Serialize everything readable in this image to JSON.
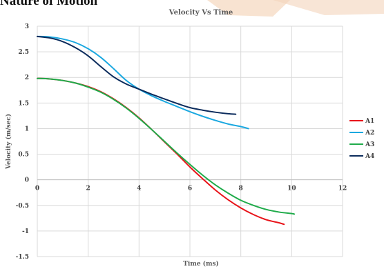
{
  "header_crop_text": "Nature of Motion",
  "chart_data": {
    "type": "line",
    "title": "Velocity Vs Time",
    "xlabel": "Time (ms)",
    "ylabel": "Velocity (m/sec)",
    "xlim": [
      0,
      12
    ],
    "ylim": [
      -1.5,
      3
    ],
    "x_ticks": [
      0,
      2,
      4,
      6,
      8,
      10,
      12
    ],
    "y_ticks": [
      3,
      2.5,
      2,
      1.5,
      1,
      0.5,
      0,
      -0.5,
      -1,
      -1.5
    ],
    "grid": true,
    "legend_position": "right",
    "series": [
      {
        "name": "A1",
        "color": "#e8141a",
        "x": [
          0,
          0.5,
          1,
          1.5,
          2,
          2.5,
          3,
          3.5,
          4,
          4.5,
          5,
          5.5,
          6,
          6.5,
          7,
          7.5,
          8,
          8.5,
          9,
          9.5,
          9.7
        ],
        "y": [
          1.98,
          1.97,
          1.94,
          1.89,
          1.82,
          1.72,
          1.58,
          1.41,
          1.21,
          0.98,
          0.74,
          0.5,
          0.25,
          0.02,
          -0.2,
          -0.39,
          -0.55,
          -0.68,
          -0.78,
          -0.84,
          -0.87
        ]
      },
      {
        "name": "A2",
        "color": "#1ba8e0",
        "x": [
          0,
          0.5,
          1,
          1.5,
          2,
          2.5,
          3,
          3.5,
          4,
          4.5,
          5,
          5.5,
          6,
          6.5,
          7,
          7.5,
          8,
          8.3
        ],
        "y": [
          2.8,
          2.79,
          2.75,
          2.68,
          2.56,
          2.39,
          2.17,
          1.94,
          1.77,
          1.64,
          1.53,
          1.43,
          1.33,
          1.24,
          1.16,
          1.09,
          1.04,
          1.0
        ]
      },
      {
        "name": "A3",
        "color": "#1fab4a",
        "x": [
          0,
          0.5,
          1,
          1.5,
          2,
          2.5,
          3,
          3.5,
          4,
          4.5,
          5,
          5.5,
          6,
          6.5,
          7,
          7.5,
          8,
          8.5,
          9,
          9.5,
          10,
          10.1
        ],
        "y": [
          1.98,
          1.97,
          1.94,
          1.89,
          1.81,
          1.71,
          1.57,
          1.4,
          1.2,
          0.98,
          0.75,
          0.52,
          0.3,
          0.09,
          -0.1,
          -0.26,
          -0.4,
          -0.5,
          -0.58,
          -0.63,
          -0.66,
          -0.67
        ]
      },
      {
        "name": "A4",
        "color": "#0b2b5c",
        "x": [
          0,
          0.5,
          1,
          1.5,
          2,
          2.5,
          3,
          3.5,
          4,
          4.5,
          5,
          5.5,
          6,
          6.5,
          7,
          7.5,
          7.8
        ],
        "y": [
          2.8,
          2.77,
          2.7,
          2.58,
          2.42,
          2.21,
          2.01,
          1.87,
          1.77,
          1.67,
          1.58,
          1.49,
          1.41,
          1.36,
          1.32,
          1.29,
          1.28
        ]
      }
    ]
  }
}
